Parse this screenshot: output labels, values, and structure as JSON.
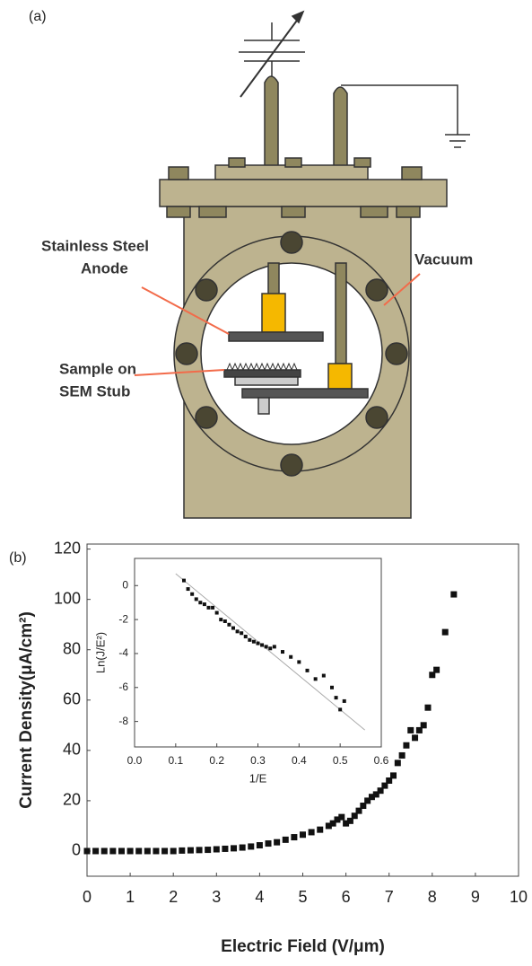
{
  "panel_a": {
    "label": "(a)",
    "anode_label": [
      "Stainless Steel",
      "Anode"
    ],
    "vacuum_label": "Vacuum",
    "sample_label": [
      "Sample on",
      "SEM Stub"
    ]
  },
  "panel_b": {
    "label": "(b)"
  },
  "chart_data": [
    {
      "type": "scatter",
      "x_label": "Electric Field (V/μm)",
      "y_label": "Current Density(μA/cm²)",
      "color": "#111111",
      "x": [
        0,
        0.2,
        0.4,
        0.6,
        0.8,
        1.0,
        1.2,
        1.4,
        1.6,
        1.8,
        2.0,
        2.2,
        2.4,
        2.6,
        2.8,
        3.0,
        3.2,
        3.4,
        3.6,
        3.8,
        4.0,
        4.2,
        4.4,
        4.6,
        4.8,
        5.0,
        5.2,
        5.4,
        5.6,
        5.7,
        5.8,
        5.9,
        6.0,
        6.1,
        6.2,
        6.3,
        6.4,
        6.5,
        6.6,
        6.7,
        6.8,
        6.9,
        7.0,
        7.1,
        7.2,
        7.3,
        7.4,
        7.5,
        7.6,
        7.7,
        7.8,
        7.9,
        8.0,
        8.1,
        8.3,
        8.5
      ],
      "values": [
        0,
        0,
        0,
        0,
        0,
        0,
        0,
        0,
        0,
        0,
        0,
        0.2,
        0.3,
        0.4,
        0.5,
        0.7,
        0.9,
        1.1,
        1.4,
        1.8,
        2.3,
        3,
        3.5,
        4.5,
        5.5,
        6.5,
        7.5,
        8.5,
        10,
        11,
        12.5,
        13.5,
        11,
        12,
        14,
        16,
        18,
        20,
        21.5,
        22.5,
        24,
        26,
        28,
        30,
        35,
        38,
        42,
        48,
        45,
        48,
        50,
        57,
        70,
        72,
        87,
        102
      ],
      "xlim": [
        0,
        10
      ],
      "ylim": [
        -10,
        122
      ],
      "xticks": [
        0,
        1,
        2,
        3,
        4,
        5,
        6,
        7,
        8,
        9,
        10
      ],
      "yticks": [
        0,
        20,
        40,
        60,
        80,
        100,
        120
      ]
    },
    {
      "type": "scatter",
      "x_label": "1/E",
      "y_label": "Ln(J/E²)",
      "color": "#111111",
      "x": [
        0.12,
        0.13,
        0.14,
        0.15,
        0.16,
        0.17,
        0.18,
        0.19,
        0.2,
        0.21,
        0.22,
        0.23,
        0.24,
        0.25,
        0.26,
        0.27,
        0.28,
        0.29,
        0.3,
        0.31,
        0.32,
        0.33,
        0.34,
        0.36,
        0.38,
        0.4,
        0.42,
        0.44,
        0.46,
        0.48,
        0.49,
        0.5,
        0.51
      ],
      "values": [
        0.3,
        -0.2,
        -0.5,
        -0.8,
        -1.0,
        -1.1,
        -1.3,
        -1.3,
        -1.6,
        -2.0,
        -2.1,
        -2.3,
        -2.5,
        -2.7,
        -2.8,
        -3.0,
        -3.2,
        -3.3,
        -3.4,
        -3.5,
        -3.6,
        -3.7,
        -3.6,
        -3.9,
        -4.2,
        -4.5,
        -5.0,
        -5.5,
        -5.3,
        -6.0,
        -6.6,
        -7.3,
        -6.8
      ],
      "fit": {
        "x": [
          0.1,
          0.56
        ],
        "values": [
          0.7,
          -8.5
        ],
        "color": "#aaaaaa"
      },
      "xlim": [
        0,
        0.6
      ],
      "ylim": [
        -9.5,
        1.6
      ],
      "xticks": [
        {
          "value": 0,
          "label": "0.0"
        },
        0.1,
        0.2,
        0.3,
        0.4,
        0.5,
        0.6
      ],
      "yticks": [
        0,
        -2,
        -4,
        -6,
        -8
      ]
    }
  ]
}
